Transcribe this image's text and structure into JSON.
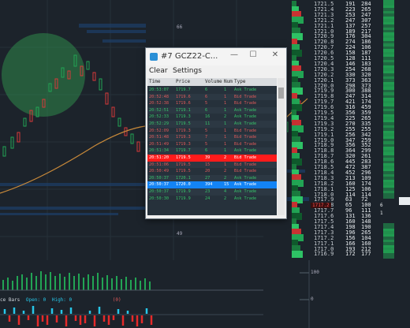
{
  "window": {
    "title": "#7 GCZ22-C...",
    "menu": {
      "clear": "Clear",
      "settings": "Settings"
    },
    "controls": {
      "minimize": "—",
      "maximize": "☐",
      "close": "✕"
    },
    "columns": {
      "time": "Time",
      "price": "Price",
      "volume": "Volume",
      "num": "Num",
      "type": "Type"
    },
    "rows": [
      {
        "time": "20:53:07",
        "price": "1719.7",
        "volume": "6",
        "num": "1",
        "type": "Ask Trade",
        "side": "ask",
        "sel": ""
      },
      {
        "time": "20:52:48",
        "price": "1719.6",
        "volume": "6",
        "num": "1",
        "type": "Bid Trade",
        "side": "bid",
        "sel": ""
      },
      {
        "time": "20:52:38",
        "price": "1719.6",
        "volume": "5",
        "num": "1",
        "type": "Bid Trade",
        "side": "bid",
        "sel": ""
      },
      {
        "time": "20:52:51",
        "price": "1719.1",
        "volume": "6",
        "num": "1",
        "type": "Ask Trade",
        "side": "ask",
        "sel": ""
      },
      {
        "time": "20:52:33",
        "price": "1719.3",
        "volume": "16",
        "num": "2",
        "type": "Ask Trade",
        "side": "ask",
        "sel": ""
      },
      {
        "time": "20:52:29",
        "price": "1719.5",
        "volume": "11",
        "num": "1",
        "type": "Ask Trade",
        "side": "ask",
        "sel": ""
      },
      {
        "time": "20:52:09",
        "price": "1719.3",
        "volume": "5",
        "num": "1",
        "type": "Bid Trade",
        "side": "bid",
        "sel": ""
      },
      {
        "time": "20:51:48",
        "price": "1719.3",
        "volume": "7",
        "num": "1",
        "type": "Bid Trade",
        "side": "bid",
        "sel": ""
      },
      {
        "time": "20:51:49",
        "price": "1719.3",
        "volume": "5",
        "num": "1",
        "type": "Bid Trade",
        "side": "bid",
        "sel": ""
      },
      {
        "time": "20:51:34",
        "price": "1719.7",
        "volume": "6",
        "num": "1",
        "type": "Ask Trade",
        "side": "ask",
        "sel": ""
      },
      {
        "time": "20:51:20",
        "price": "1719.5",
        "volume": "39",
        "num": "2",
        "type": "Bid Trade",
        "side": "bid",
        "sel": "red"
      },
      {
        "time": "20:51:06",
        "price": "1719.5",
        "volume": "15",
        "num": "1",
        "type": "Bid Trade",
        "side": "bid",
        "sel": ""
      },
      {
        "time": "20:50:49",
        "price": "1719.5",
        "volume": "20",
        "num": "2",
        "type": "Bid Trade",
        "side": "bid",
        "sel": ""
      },
      {
        "time": "20:50:37",
        "price": "1720.1",
        "volume": "27",
        "num": "2",
        "type": "Ask Trade",
        "side": "ask",
        "sel": ""
      },
      {
        "time": "20:50:37",
        "price": "1720.0",
        "volume": "394",
        "num": "15",
        "type": "Ask Trade",
        "side": "ask",
        "sel": "blue"
      },
      {
        "time": "20:50:37",
        "price": "1719.9",
        "volume": "23",
        "num": "4",
        "type": "Ask Trade",
        "side": "ask",
        "sel": ""
      },
      {
        "time": "20:50:30",
        "price": "1719.9",
        "volume": "24",
        "num": "2",
        "type": "Ask Trade",
        "side": "ask",
        "sel": ""
      }
    ]
  },
  "chart": {
    "labels": {
      "top": "66",
      "mid": "49"
    },
    "status": {
      "bars": "ce Bars",
      "open": "Open: 0",
      "high": "High: 0",
      "tail": "(0)"
    },
    "colors": {
      "up": "#22a454",
      "down": "#d83a3a",
      "ema": "#c98a3a",
      "cyan": "#27c6e8"
    }
  },
  "ladder": {
    "rows": [
      {
        "price": "1721.5",
        "a": "191",
        "b": "284"
      },
      {
        "price": "1721.4",
        "a": "223",
        "b": "265"
      },
      {
        "price": "1721.3",
        "a": "253",
        "b": "247"
      },
      {
        "price": "1721.2",
        "a": "247",
        "b": "307"
      },
      {
        "price": "1721.1",
        "a": "137",
        "b": "257"
      },
      {
        "price": "1721.0",
        "a": "189",
        "b": "217"
      },
      {
        "price": "1720.9",
        "a": "176",
        "b": "304"
      },
      {
        "price": "1720.8",
        "a": "274",
        "b": "186"
      },
      {
        "price": "1720.7",
        "a": "224",
        "b": "106"
      },
      {
        "price": "1720.6",
        "a": "158",
        "b": "187"
      },
      {
        "price": "1720.5",
        "a": "128",
        "b": "111"
      },
      {
        "price": "1720.4",
        "a": "146",
        "b": "183"
      },
      {
        "price": "1720.3",
        "a": "254",
        "b": "268"
      },
      {
        "price": "1720.2",
        "a": "330",
        "b": "320"
      },
      {
        "price": "1720.1",
        "a": "373",
        "b": "363"
      },
      {
        "price": "1720.0",
        "a": "298",
        "b": "373"
      },
      {
        "price": "1719.9",
        "a": "300",
        "b": "388"
      },
      {
        "price": "1719.8",
        "a": "247",
        "b": "314"
      },
      {
        "price": "1719.7",
        "a": "421",
        "b": "174"
      },
      {
        "price": "1719.6",
        "a": "316",
        "b": "459"
      },
      {
        "price": "1719.5",
        "a": "356",
        "b": "359"
      },
      {
        "price": "1719.4",
        "a": "225",
        "b": "265"
      },
      {
        "price": "1719.3",
        "a": "270",
        "b": "335"
      },
      {
        "price": "1719.2",
        "a": "255",
        "b": "255"
      },
      {
        "price": "1719.1",
        "a": "256",
        "b": "342"
      },
      {
        "price": "1719.0",
        "a": "347",
        "b": "259"
      },
      {
        "price": "1718.9",
        "a": "356",
        "b": "352"
      },
      {
        "price": "1718.8",
        "a": "364",
        "b": "299"
      },
      {
        "price": "1718.7",
        "a": "320",
        "b": "261"
      },
      {
        "price": "1718.6",
        "a": "445",
        "b": "283"
      },
      {
        "price": "1718.5",
        "a": "472",
        "b": "387"
      },
      {
        "price": "1718.4",
        "a": "452",
        "b": "296"
      },
      {
        "price": "1718.3",
        "a": "213",
        "b": "109"
      },
      {
        "price": "1718.2",
        "a": "160",
        "b": "174"
      },
      {
        "price": "1718.1",
        "a": "125",
        "b": "106"
      },
      {
        "price": "1718.0",
        "a": "114",
        "b": "114"
      },
      {
        "price": "1717.9",
        "a": "63",
        "b": "72"
      },
      {
        "price": "1717.8",
        "a": "65",
        "b": "100"
      },
      {
        "price": "1717.7",
        "a": "96",
        "b": "111"
      },
      {
        "price": "1717.6",
        "a": "131",
        "b": "136"
      },
      {
        "price": "1717.5",
        "a": "160",
        "b": "148"
      },
      {
        "price": "1717.4",
        "a": "198",
        "b": "190"
      },
      {
        "price": "1717.3",
        "a": "196",
        "b": "265"
      },
      {
        "price": "1717.2",
        "a": "156",
        "b": "104"
      },
      {
        "price": "1717.1",
        "a": "166",
        "b": "160"
      },
      {
        "price": "1717.0",
        "a": "193",
        "b": "212"
      },
      {
        "price": "1716.9",
        "a": "172",
        "b": "177"
      }
    ],
    "marker": "1717.2",
    "side": {
      "v1": "6",
      "v2": "1"
    },
    "axis": {
      "v100": "100",
      "v0": "0"
    }
  }
}
